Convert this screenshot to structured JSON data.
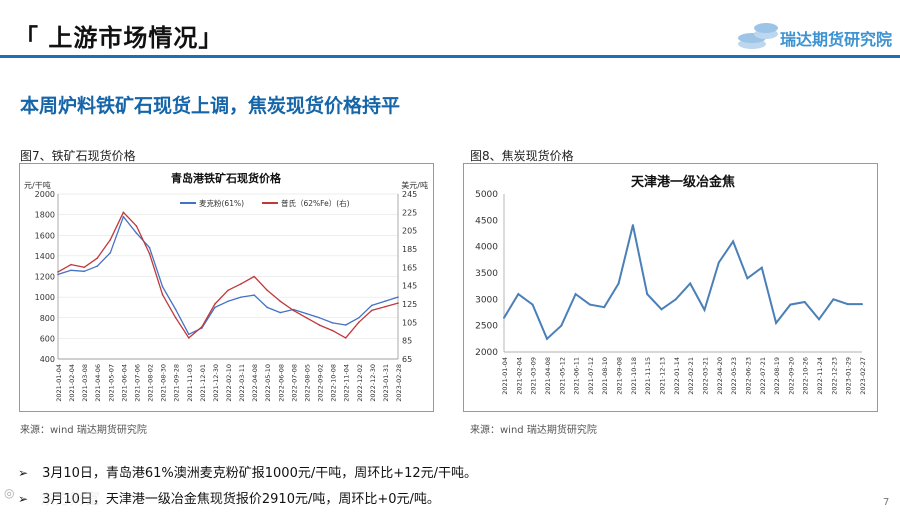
{
  "header": {
    "title": "「 上游市场情况」",
    "logo_text": "瑞达期货研究院",
    "accent_color": "#1f6fb5"
  },
  "subtitle": "本周炉料铁矿石现货上调，焦炭现货价格持平",
  "figures": [
    {
      "label": "图7、铁矿石现货价格",
      "source": "来源：wind   瑞达期货研究院"
    },
    {
      "label": "图8、焦炭现货价格",
      "source": "来源：wind   瑞达期货研究院"
    }
  ],
  "bullets": [
    "3月10日，青岛港61%澳洲麦克粉矿报1000元/干吨，周环比+12元/干吨。",
    "3月10日，天津港一级冶金焦现货报价2910元/吨，周环比+0元/吨。"
  ],
  "footer": {
    "page_number": "7",
    "watermark": "东方财富"
  },
  "chart_data": [
    {
      "type": "line",
      "title": "青岛港铁矿石现货价格",
      "ylabel_left": "元/干吨",
      "ylabel_right": "美元/吨",
      "ylim_left": [
        400,
        2000
      ],
      "yticks_left": [
        "400",
        "600",
        "800",
        "1000",
        "1200",
        "1400",
        "1600",
        "1800",
        "2000"
      ],
      "ylim_right": [
        65,
        245
      ],
      "yticks_right": [
        "65",
        "85",
        "105",
        "125",
        "145",
        "165",
        "185",
        "205",
        "225",
        "245"
      ],
      "x": [
        "2021-01-04",
        "2021-02-04",
        "2021-03-08",
        "2021-04-06",
        "2021-05-07",
        "2021-06-04",
        "2021-07-06",
        "2021-08-02",
        "2021-08-30",
        "2021-09-28",
        "2021-11-03",
        "2021-12-01",
        "2021-12-30",
        "2022-02-10",
        "2022-03-11",
        "2022-04-08",
        "2022-05-10",
        "2022-06-08",
        "2022-07-08",
        "2022-08-05",
        "2022-09-02",
        "2022-10-08",
        "2022-11-04",
        "2022-12-02",
        "2022-12-30",
        "2023-01-31",
        "2023-02-28"
      ],
      "legend_position": "top-center",
      "series": [
        {
          "name": "麦克粉(61%)",
          "axis": "left",
          "color": "#4472c4",
          "values": [
            1220,
            1260,
            1250,
            1300,
            1430,
            1780,
            1620,
            1480,
            1100,
            880,
            640,
            700,
            900,
            960,
            1000,
            1020,
            900,
            850,
            880,
            840,
            800,
            750,
            730,
            800,
            920,
            960,
            1000
          ]
        },
        {
          "name": "普氏（62%Fe）(右)",
          "axis": "right",
          "color": "#c0393b",
          "values": [
            160,
            168,
            165,
            175,
            195,
            225,
            210,
            180,
            135,
            110,
            88,
            100,
            125,
            140,
            147,
            155,
            140,
            128,
            118,
            110,
            102,
            96,
            88,
            105,
            118,
            122,
            126
          ]
        }
      ]
    },
    {
      "type": "line",
      "title": "天津港一级冶金焦",
      "ylim": [
        2000,
        5000
      ],
      "yticks": [
        "2000",
        "2500",
        "3000",
        "3500",
        "4000",
        "4500",
        "5000"
      ],
      "x": [
        "2021-01-04",
        "2021-02-04",
        "2021-03-09",
        "2021-04-08",
        "2021-05-12",
        "2021-06-11",
        "2021-07-12",
        "2021-08-10",
        "2021-09-08",
        "2021-10-18",
        "2021-11-15",
        "2021-12-13",
        "2022-01-14",
        "2022-02-21",
        "2022-03-21",
        "2022-04-20",
        "2022-05-23",
        "2022-06-23",
        "2022-07-21",
        "2022-08-19",
        "2022-09-20",
        "2022-10-26",
        "2022-11-24",
        "2022-12-23",
        "2023-01-29",
        "2023-02-27"
      ],
      "series": [
        {
          "name": "",
          "color": "#4a7fb8",
          "values": [
            2650,
            3100,
            2900,
            2250,
            2500,
            3100,
            2900,
            2850,
            3300,
            4410,
            3100,
            2810,
            3000,
            3300,
            2800,
            3700,
            4100,
            3400,
            3600,
            2550,
            2900,
            2950,
            2620,
            3000,
            2910,
            2910
          ]
        }
      ]
    }
  ]
}
